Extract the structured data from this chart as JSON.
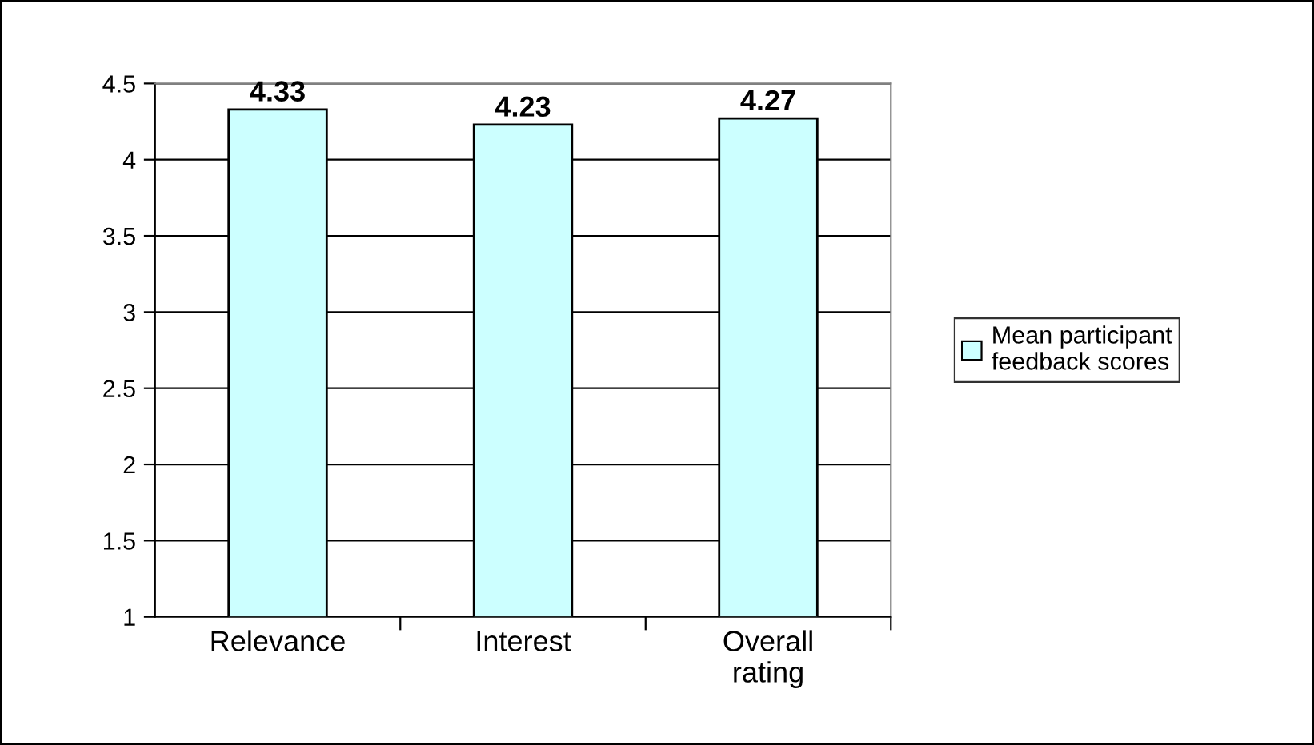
{
  "chart_data": {
    "type": "bar",
    "categories": [
      "Relevance",
      "Interest",
      "Overall rating"
    ],
    "series": [
      {
        "name": "Mean participant feedback scores",
        "color": "#ccffff",
        "values": [
          4.33,
          4.23,
          4.27
        ]
      }
    ],
    "ylim": [
      1,
      4.5
    ],
    "yticks": [
      1,
      1.5,
      2,
      2.5,
      3,
      3.5,
      4,
      4.5
    ],
    "grid": "y",
    "legend": "right",
    "data_labels": true
  }
}
